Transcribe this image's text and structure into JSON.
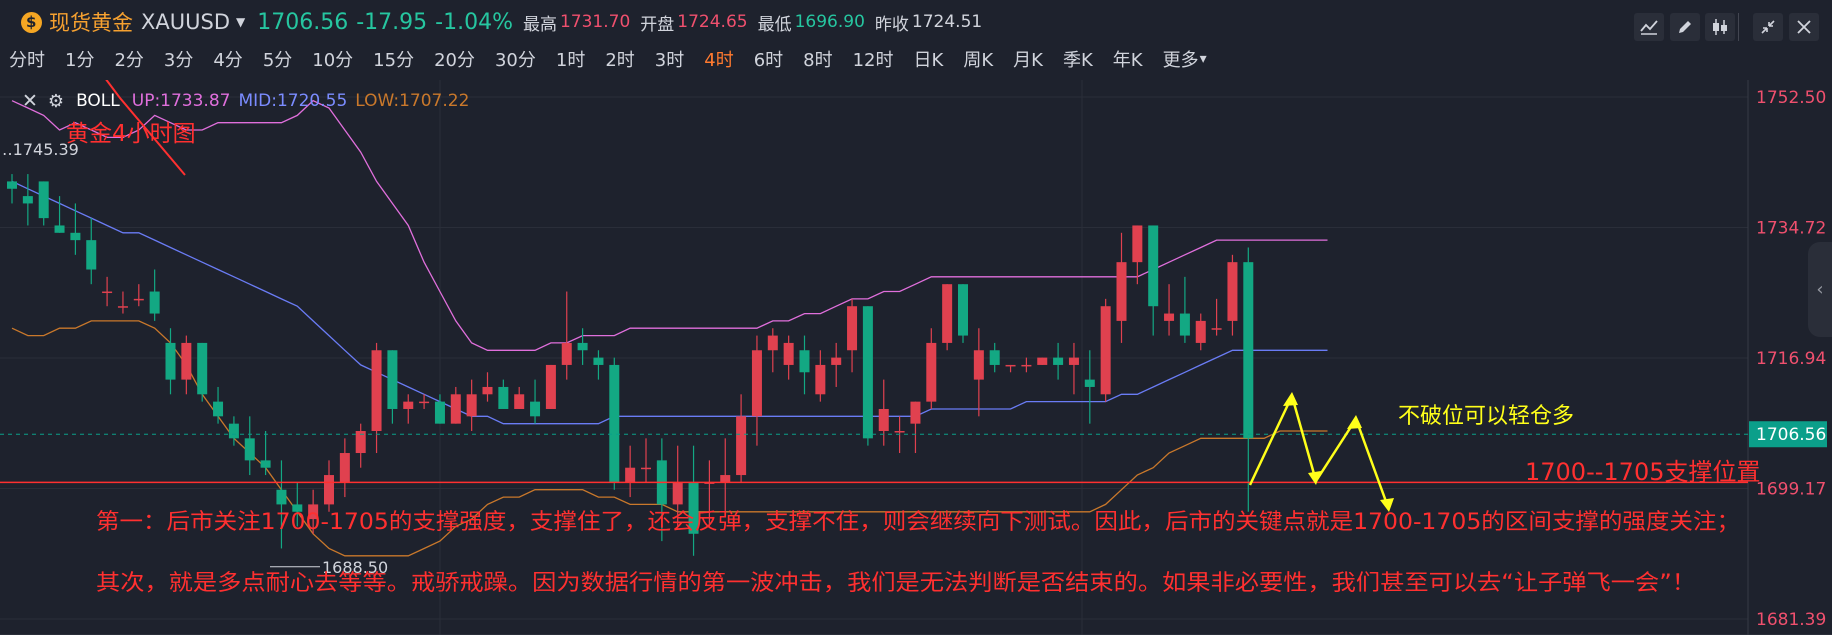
{
  "header": {
    "name": "现货黄金",
    "symbol": "XAUUSD",
    "price": "1706.56",
    "change": "-17.95",
    "change_pct": "-1.04%",
    "high_label": "最高",
    "high": "1731.70",
    "open_label": "开盘",
    "open": "1724.65",
    "low_label": "最低",
    "low": "1696.90",
    "prev_label": "昨收",
    "prev": "1724.51"
  },
  "toolbar_icons": [
    "indicator-icon",
    "draw-pencil-icon",
    "candle-type-icon",
    "shrink-icon",
    "close-icon"
  ],
  "intervals": [
    "分时",
    "1分",
    "2分",
    "3分",
    "4分",
    "5分",
    "10分",
    "15分",
    "20分",
    "30分",
    "1时",
    "2时",
    "3时",
    "4时",
    "6时",
    "8时",
    "12时",
    "日K",
    "周K",
    "月K",
    "季K",
    "年K",
    "更多"
  ],
  "active_interval": "4时",
  "indicator": {
    "name": "BOLL",
    "up": "UP:1733.87",
    "mid": "MID:1720.55",
    "low": "LOW:1707.22"
  },
  "colors": {
    "up_candle": "#e0414f",
    "down_candle": "#13a883",
    "boll_up": "#e06fdc",
    "boll_mid": "#6a7cf5",
    "boll_low": "#c9782b",
    "annotation_red": "#ff3030",
    "annotation_yellow": "#ffff1a",
    "price_tag": "#0b9f8a"
  },
  "chart_data": {
    "type": "candlestick",
    "title": "黄金4小时图",
    "ylim": [
      1680.5,
      1754.0
    ],
    "y_ticks": [
      "1752.50",
      "1734.72",
      "1716.94",
      "1699.17",
      "1681.39"
    ],
    "current_price": "1706.56",
    "max_label": "1745.39",
    "min_label": "1688.50",
    "ohlc": [
      [
        1741,
        1742,
        1738,
        1740
      ],
      [
        1739,
        1742,
        1735,
        1738
      ],
      [
        1741,
        1741,
        1735,
        1736
      ],
      [
        1735,
        1739,
        1734,
        1734
      ],
      [
        1734,
        1738,
        1731,
        1733
      ],
      [
        1733,
        1736,
        1727,
        1729
      ],
      [
        1726,
        1728,
        1724,
        1726
      ],
      [
        1724,
        1726,
        1723,
        1724
      ],
      [
        1725,
        1727,
        1724,
        1725
      ],
      [
        1726,
        1729,
        1722,
        1723
      ],
      [
        1719,
        1721,
        1712,
        1714
      ],
      [
        1714,
        1720,
        1712,
        1719
      ],
      [
        1719,
        1719,
        1711,
        1712
      ],
      [
        1711,
        1713,
        1708,
        1709
      ],
      [
        1708,
        1709,
        1705,
        1706
      ],
      [
        1706,
        1709,
        1701,
        1703
      ],
      [
        1703,
        1707,
        1701,
        1702
      ],
      [
        1699,
        1703,
        1691,
        1697
      ],
      [
        1697,
        1700,
        1694,
        1696
      ],
      [
        1695,
        1699,
        1693,
        1697
      ],
      [
        1697,
        1703,
        1696,
        1701
      ],
      [
        1700,
        1706,
        1698,
        1704
      ],
      [
        1704,
        1708,
        1702,
        1707
      ],
      [
        1707,
        1719,
        1704,
        1718
      ],
      [
        1718,
        1718,
        1708,
        1710
      ],
      [
        1710,
        1712,
        1708,
        1711
      ],
      [
        1711,
        1712,
        1710,
        1711
      ],
      [
        1711,
        1712,
        1708,
        1708
      ],
      [
        1708,
        1713,
        1708,
        1712
      ],
      [
        1709,
        1714,
        1707,
        1712
      ],
      [
        1712,
        1715,
        1711,
        1713
      ],
      [
        1713,
        1714,
        1710,
        1710
      ],
      [
        1710,
        1713,
        1710,
        1712
      ],
      [
        1711,
        1714,
        1708,
        1709
      ],
      [
        1710,
        1716,
        1710,
        1716
      ],
      [
        1716,
        1726,
        1714,
        1719
      ],
      [
        1719,
        1721,
        1716,
        1718
      ],
      [
        1717,
        1718,
        1714,
        1716
      ],
      [
        1716,
        1717,
        1699,
        1700
      ],
      [
        1700,
        1705,
        1698,
        1702
      ],
      [
        1702,
        1706,
        1700,
        1702
      ],
      [
        1703,
        1706,
        1692,
        1697
      ],
      [
        1697,
        1705,
        1694,
        1700
      ],
      [
        1700,
        1705,
        1690,
        1693
      ],
      [
        1700,
        1703,
        1694,
        1700
      ],
      [
        1700,
        1706,
        1696,
        1701
      ],
      [
        1701,
        1712,
        1700,
        1709
      ],
      [
        1709,
        1720,
        1705,
        1718
      ],
      [
        1718,
        1721,
        1715,
        1720
      ],
      [
        1716,
        1720,
        1714,
        1719
      ],
      [
        1718,
        1720,
        1712,
        1715
      ],
      [
        1712,
        1718,
        1711,
        1716
      ],
      [
        1716,
        1719,
        1713,
        1717
      ],
      [
        1718,
        1725,
        1715,
        1724
      ],
      [
        1724,
        1724,
        1705,
        1706
      ],
      [
        1707,
        1714,
        1705,
        1710
      ],
      [
        1707,
        1709,
        1704,
        1707
      ],
      [
        1708,
        1711,
        1704,
        1711
      ],
      [
        1711,
        1721,
        1710,
        1719
      ],
      [
        1719,
        1727,
        1718,
        1727
      ],
      [
        1727,
        1727,
        1719,
        1720
      ],
      [
        1714,
        1721,
        1709,
        1718
      ],
      [
        1718,
        1719,
        1715,
        1716
      ],
      [
        1716,
        1716,
        1715,
        1716
      ],
      [
        1716,
        1717,
        1715,
        1716
      ],
      [
        1716,
        1717,
        1716,
        1717
      ],
      [
        1717,
        1719,
        1714,
        1716
      ],
      [
        1716,
        1719,
        1712,
        1717
      ],
      [
        1714,
        1718,
        1708,
        1713
      ],
      [
        1712,
        1725,
        1711,
        1724
      ],
      [
        1722,
        1734,
        1719,
        1730
      ],
      [
        1730,
        1735,
        1727,
        1735
      ],
      [
        1735,
        1735,
        1720,
        1724
      ],
      [
        1722,
        1727,
        1720,
        1723
      ],
      [
        1723,
        1728,
        1719,
        1720
      ],
      [
        1719,
        1723,
        1718,
        1722
      ],
      [
        1721,
        1725,
        1720,
        1721
      ],
      [
        1722,
        1731,
        1720,
        1730
      ],
      [
        1730,
        1732,
        1696,
        1706
      ]
    ],
    "boll_up": [
      1752,
      1751,
      1750,
      1748,
      1749,
      1748,
      1747,
      1747,
      1748,
      1750,
      1749,
      1748,
      1748,
      1749,
      1749,
      1749,
      1749,
      1749,
      1750,
      1752,
      1751,
      1748,
      1745,
      1741,
      1738,
      1735,
      1730,
      1726,
      1722,
      1719,
      1718,
      1718,
      1718,
      1718,
      1719,
      1719,
      1720,
      1720,
      1720,
      1721,
      1721,
      1721,
      1721,
      1721,
      1721,
      1721,
      1721,
      1721,
      1722,
      1722,
      1723,
      1723,
      1724,
      1725,
      1725,
      1726,
      1726,
      1727,
      1728,
      1728,
      1728,
      1728,
      1728,
      1728,
      1728,
      1728,
      1728,
      1728,
      1728,
      1728,
      1728,
      1728,
      1729,
      1730,
      1731,
      1732,
      1733,
      1733,
      1733,
      1733,
      1733,
      1733,
      1733,
      1733
    ],
    "boll_mid": [
      1741,
      1740,
      1739,
      1738,
      1737,
      1736,
      1735,
      1734,
      1734,
      1733,
      1732,
      1731,
      1730,
      1729,
      1728,
      1727,
      1726,
      1725,
      1724,
      1722,
      1720,
      1718,
      1716,
      1715,
      1714,
      1713,
      1712,
      1711,
      1710,
      1709,
      1709,
      1708,
      1708,
      1708,
      1708,
      1708,
      1708,
      1708,
      1709,
      1709,
      1709,
      1709,
      1709,
      1709,
      1709,
      1709,
      1709,
      1709,
      1709,
      1709,
      1709,
      1709,
      1709,
      1709,
      1709,
      1709,
      1709,
      1709,
      1710,
      1710,
      1710,
      1710,
      1710,
      1710,
      1711,
      1711,
      1711,
      1711,
      1711,
      1711,
      1712,
      1712,
      1713,
      1714,
      1715,
      1716,
      1717,
      1718,
      1718,
      1718,
      1718,
      1718,
      1718,
      1718
    ],
    "boll_low": [
      1721,
      1720,
      1720,
      1721,
      1721,
      1722,
      1722,
      1722,
      1722,
      1721,
      1719,
      1716,
      1712,
      1709,
      1706,
      1704,
      1702,
      1699,
      1696,
      1693,
      1691,
      1690,
      1690,
      1690,
      1690,
      1690,
      1691,
      1692,
      1694,
      1695,
      1697,
      1698,
      1698,
      1699,
      1699,
      1699,
      1699,
      1698,
      1698,
      1697,
      1697,
      1697,
      1696,
      1696,
      1696,
      1696,
      1696,
      1696,
      1696,
      1696,
      1696,
      1696,
      1696,
      1696,
      1696,
      1696,
      1696,
      1696,
      1696,
      1696,
      1696,
      1696,
      1696,
      1696,
      1696,
      1696,
      1696,
      1696,
      1696,
      1697,
      1699,
      1701,
      1702,
      1704,
      1705,
      1706,
      1706,
      1706,
      1706,
      1706,
      1707,
      1707,
      1707,
      1707
    ],
    "support_level": 1700,
    "annotations": {
      "chart_title": "黄金4小时图",
      "support_label": "1700--1705支撑位置",
      "no_break_note": "不破位可以轻仓多",
      "analysis_line1": "第一：后市关注1700-1705的支撑强度，支撑住了，还会反弹，支撑不住，则会继续向下测试。因此，后市的关键点就是1700-1705的区间支撑的强度关注；",
      "analysis_line2": "其次，就是多点耐心去等等。戒骄戒躁。因为数据行情的第一波冲击，我们是无法判断是否结束的。如果非必要性，我们甚至可以去“让子弹飞一会”！"
    }
  }
}
